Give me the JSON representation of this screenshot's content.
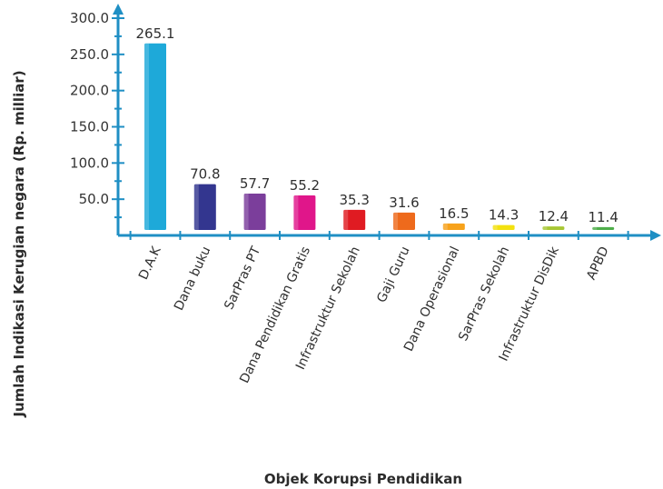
{
  "chart_data": {
    "type": "bar",
    "title": "",
    "xlabel": "Objek Korupsi Pendidikan",
    "ylabel": "Jumlah Indikasi Kerugian negara (Rp. milliar)",
    "ylim": [
      0,
      300
    ],
    "yticks": [
      "300.0",
      "250.0",
      "200.0",
      "150.0",
      "100.0",
      "50.0"
    ],
    "categories": [
      "D.A.K",
      "Dana buku",
      "SarPras PT",
      "Dana Pendidikan Gratis",
      "Infrastruktur Sekolah",
      "Gaji Guru",
      "Dana Operasional",
      "SarPras Sekolah",
      "Infrastruktur DisDik",
      "APBD"
    ],
    "values": [
      265.1,
      70.8,
      57.7,
      55.2,
      35.3,
      31.6,
      16.5,
      14.3,
      12.4,
      11.4
    ],
    "value_labels": [
      "265.1",
      "70.8",
      "57.7",
      "55.2",
      "35.3",
      "31.6",
      "16.5",
      "14.3",
      "12.4",
      "11.4"
    ],
    "colors": [
      "#1ea9d9",
      "#33368f",
      "#7b3e9b",
      "#e0168a",
      "#e01b22",
      "#ee6a1c",
      "#f7a21b",
      "#f3e10f",
      "#a8c734",
      "#4eae4a"
    ],
    "axis_color": "#1f8fc4",
    "grid": false,
    "legend": "none"
  }
}
